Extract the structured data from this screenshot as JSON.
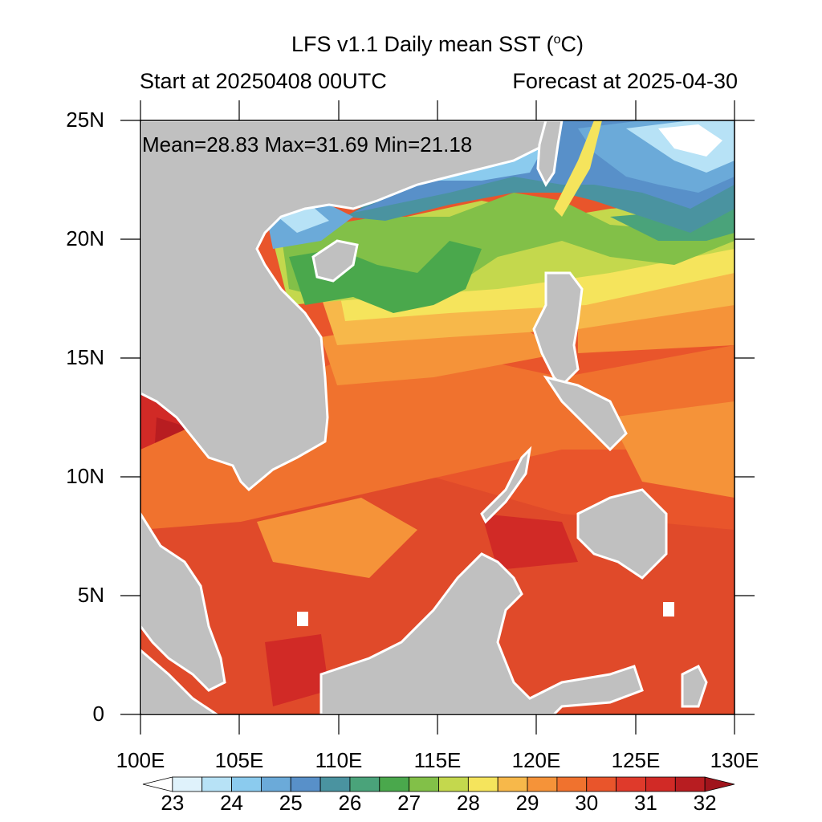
{
  "title": "LFS v1.1 Daily mean SST (",
  "title_unit": "C)",
  "title_degree": "o",
  "start_text": "Start at 20250408 00UTC",
  "forecast_text": "Forecast at 2025-04-30",
  "stats_text": "Mean=28.83  Max=31.69  Min=21.18",
  "y_ticks": [
    "25N",
    "20N",
    "15N",
    "10N",
    "5N",
    "0"
  ],
  "x_ticks": [
    "100E",
    "105E",
    "110E",
    "115E",
    "120E",
    "125E",
    "130E"
  ],
  "colorbar": {
    "labels": [
      "23",
      "24",
      "25",
      "26",
      "27",
      "28",
      "29",
      "30",
      "31",
      "32"
    ],
    "colors": [
      "#ffffff",
      "#dff2fb",
      "#b7e2f6",
      "#8bcbee",
      "#6baad9",
      "#5890c9",
      "#4a93a0",
      "#4aa37a",
      "#4aa84c",
      "#82c048",
      "#c4d84d",
      "#f5e45c",
      "#f7b84a",
      "#f59339",
      "#f0722e",
      "#e9552b",
      "#df3a2b",
      "#d12a26",
      "#b81d21",
      "#a0141c"
    ]
  },
  "land_color": "#c0c0c0"
}
